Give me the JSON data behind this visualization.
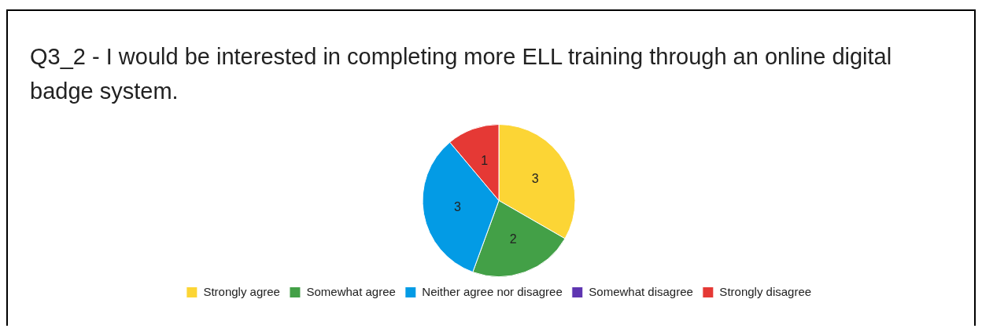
{
  "chart_data": {
    "type": "pie",
    "title": "Q3_2 - I would be interested in completing more ELL training through an online digital badge system.",
    "categories": [
      "Strongly agree",
      "Somewhat agree",
      "Neither agree nor disagree",
      "Somewhat disagree",
      "Strongly disagree"
    ],
    "values": [
      3,
      2,
      3,
      0,
      1
    ],
    "colors": [
      "#fcd535",
      "#43a047",
      "#039be5",
      "#5e35b1",
      "#e53935"
    ],
    "value_labels": [
      "3",
      "2",
      "3",
      null,
      "1"
    ],
    "legend": "bottom"
  }
}
